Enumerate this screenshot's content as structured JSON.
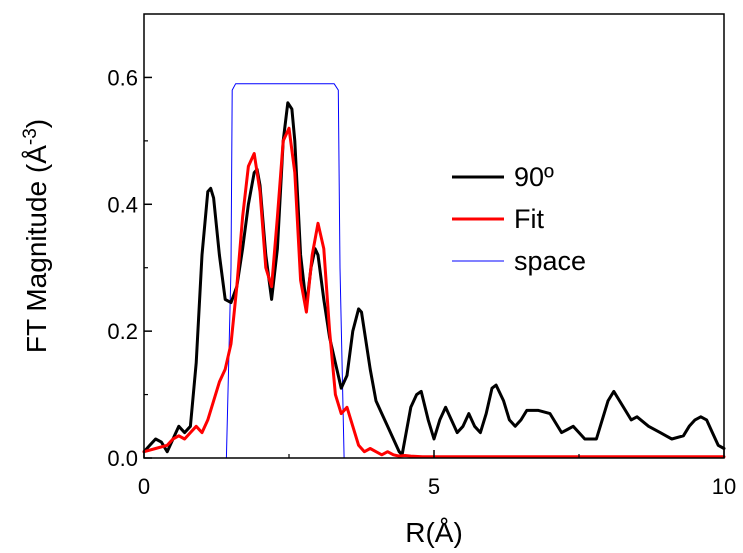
{
  "chart_data": {
    "type": "line",
    "title": "",
    "xlabel": "R(Å)",
    "ylabel_parts": {
      "main": "FT Magnitude (Å",
      "sup": "-3",
      "close": ")"
    },
    "xlim": [
      0,
      10
    ],
    "ylim": [
      0,
      0.7
    ],
    "xticks": [
      0,
      5,
      10
    ],
    "xtick_labels": [
      "0",
      "5",
      "10"
    ],
    "yticks": [
      0.0,
      0.2,
      0.4,
      0.6
    ],
    "ytick_labels": [
      "0.0",
      "0.2",
      "0.4",
      "0.6"
    ],
    "grid": false,
    "legend_position": "right",
    "series": [
      {
        "name": "90º",
        "color": "#000000",
        "x": [
          0.0,
          0.1,
          0.2,
          0.3,
          0.4,
          0.5,
          0.6,
          0.7,
          0.8,
          0.9,
          1.0,
          1.1,
          1.15,
          1.2,
          1.3,
          1.4,
          1.5,
          1.6,
          1.7,
          1.8,
          1.9,
          1.95,
          2.0,
          2.1,
          2.2,
          2.3,
          2.4,
          2.48,
          2.55,
          2.6,
          2.7,
          2.8,
          2.88,
          2.95,
          3.0,
          3.1,
          3.2,
          3.3,
          3.4,
          3.5,
          3.6,
          3.7,
          3.75,
          3.8,
          3.9,
          4.0,
          4.1,
          4.2,
          4.3,
          4.4,
          4.45,
          4.5,
          4.6,
          4.7,
          4.78,
          4.9,
          5.0,
          5.1,
          5.2,
          5.3,
          5.4,
          5.5,
          5.6,
          5.7,
          5.8,
          5.9,
          6.0,
          6.07,
          6.2,
          6.3,
          6.4,
          6.5,
          6.6,
          6.8,
          7.0,
          7.2,
          7.3,
          7.4,
          7.5,
          7.6,
          7.8,
          8.0,
          8.1,
          8.2,
          8.4,
          8.5,
          8.7,
          8.9,
          9.0,
          9.1,
          9.3,
          9.4,
          9.5,
          9.6,
          9.7,
          9.8,
          9.9,
          10.0
        ],
        "values": [
          0.01,
          0.02,
          0.03,
          0.025,
          0.01,
          0.03,
          0.05,
          0.04,
          0.05,
          0.15,
          0.32,
          0.42,
          0.425,
          0.41,
          0.32,
          0.25,
          0.245,
          0.27,
          0.33,
          0.4,
          0.45,
          0.455,
          0.43,
          0.32,
          0.25,
          0.33,
          0.5,
          0.56,
          0.55,
          0.5,
          0.32,
          0.24,
          0.3,
          0.33,
          0.32,
          0.25,
          0.19,
          0.15,
          0.11,
          0.13,
          0.2,
          0.235,
          0.23,
          0.2,
          0.14,
          0.09,
          0.07,
          0.05,
          0.03,
          0.01,
          0.005,
          0.03,
          0.08,
          0.1,
          0.105,
          0.06,
          0.03,
          0.06,
          0.08,
          0.06,
          0.04,
          0.05,
          0.07,
          0.05,
          0.04,
          0.07,
          0.11,
          0.115,
          0.09,
          0.06,
          0.05,
          0.06,
          0.075,
          0.075,
          0.07,
          0.04,
          0.045,
          0.05,
          0.04,
          0.03,
          0.03,
          0.09,
          0.105,
          0.09,
          0.06,
          0.065,
          0.05,
          0.04,
          0.035,
          0.03,
          0.035,
          0.05,
          0.06,
          0.065,
          0.06,
          0.04,
          0.02,
          0.015
        ]
      },
      {
        "name": "Fit",
        "color": "#ff0000",
        "x": [
          0.0,
          0.2,
          0.4,
          0.5,
          0.6,
          0.7,
          0.8,
          0.9,
          1.0,
          1.1,
          1.2,
          1.3,
          1.4,
          1.5,
          1.6,
          1.7,
          1.8,
          1.9,
          2.0,
          2.1,
          2.2,
          2.3,
          2.4,
          2.5,
          2.6,
          2.7,
          2.8,
          2.9,
          3.0,
          3.1,
          3.2,
          3.3,
          3.4,
          3.5,
          3.6,
          3.7,
          3.8,
          3.9,
          4.0,
          4.1,
          4.2,
          4.3,
          4.4,
          4.5,
          4.6,
          4.8,
          5.0,
          5.5,
          6.0,
          7.0,
          8.0,
          9.0,
          10.0
        ],
        "values": [
          0.01,
          0.015,
          0.02,
          0.03,
          0.035,
          0.03,
          0.04,
          0.05,
          0.04,
          0.06,
          0.09,
          0.12,
          0.14,
          0.18,
          0.27,
          0.38,
          0.46,
          0.48,
          0.42,
          0.3,
          0.27,
          0.38,
          0.5,
          0.52,
          0.45,
          0.28,
          0.23,
          0.32,
          0.37,
          0.33,
          0.2,
          0.1,
          0.07,
          0.08,
          0.05,
          0.02,
          0.01,
          0.015,
          0.01,
          0.005,
          0.01,
          0.005,
          0.003,
          0.004,
          0.003,
          0.002,
          0.002,
          0.002,
          0.002,
          0.002,
          0.002,
          0.002,
          0.002
        ]
      },
      {
        "name": "space",
        "color": "#0000ff",
        "x": [
          0.0,
          1.42,
          1.5,
          1.52,
          1.58,
          3.28,
          3.35,
          3.38,
          3.45,
          10.0
        ],
        "values": [
          0.0,
          0.0,
          0.3,
          0.58,
          0.59,
          0.59,
          0.58,
          0.3,
          0.0,
          0.0
        ]
      }
    ]
  }
}
